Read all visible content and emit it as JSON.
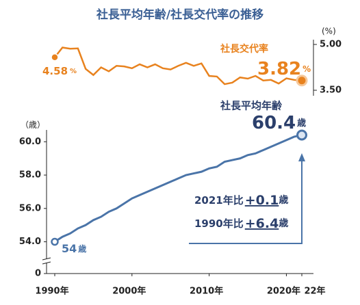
{
  "title": "社長平均年齢/社長交代率の推移",
  "chart_data": [
    {
      "type": "line",
      "name": "社長交代率",
      "color": "#e8821e",
      "unit": "%",
      "axis_unit": "(%)",
      "x": [
        1990,
        1991,
        1992,
        1993,
        1994,
        1995,
        1996,
        1997,
        1998,
        1999,
        2000,
        2001,
        2002,
        2003,
        2004,
        2005,
        2006,
        2007,
        2008,
        2009,
        2010,
        2011,
        2012,
        2013,
        2014,
        2015,
        2016,
        2017,
        2018,
        2019,
        2020,
        2021,
        2022
      ],
      "values": [
        4.58,
        4.9,
        4.86,
        4.87,
        4.2,
        4.0,
        4.25,
        4.12,
        4.3,
        4.28,
        4.22,
        4.35,
        4.25,
        4.35,
        4.22,
        4.18,
        4.3,
        4.4,
        4.3,
        4.38,
        3.97,
        3.95,
        3.7,
        3.75,
        3.92,
        3.88,
        3.97,
        3.82,
        3.84,
        3.72,
        3.89,
        3.84,
        3.82
      ],
      "xlim": [
        1990,
        2022
      ],
      "ylim": [
        3.5,
        5.0
      ],
      "yticks": [
        {
          "value": 5.0,
          "label": "5.00"
        },
        {
          "value": 3.5,
          "label": "3.50"
        }
      ]
    },
    {
      "type": "line",
      "name": "社長平均年齢",
      "color": "#4a74a8",
      "unit": "歳",
      "axis_unit": "（歳）",
      "x": [
        1990,
        1991,
        1992,
        1993,
        1994,
        1995,
        1996,
        1997,
        1998,
        1999,
        2000,
        2001,
        2002,
        2003,
        2004,
        2005,
        2006,
        2007,
        2008,
        2009,
        2010,
        2011,
        2012,
        2013,
        2014,
        2015,
        2016,
        2017,
        2018,
        2019,
        2020,
        2021,
        2022
      ],
      "values": [
        54.0,
        54.3,
        54.5,
        54.8,
        55.0,
        55.3,
        55.5,
        55.8,
        56.0,
        56.3,
        56.6,
        56.8,
        57.0,
        57.2,
        57.4,
        57.6,
        57.8,
        58.0,
        58.1,
        58.2,
        58.4,
        58.5,
        58.8,
        58.9,
        59.0,
        59.2,
        59.3,
        59.5,
        59.7,
        59.9,
        60.1,
        60.3,
        60.4
      ],
      "xlim": [
        1990,
        2022
      ],
      "ylim": [
        52.3,
        61.2
      ],
      "xticks": [
        {
          "value": 1990,
          "label": "1990年"
        },
        {
          "value": 2000,
          "label": "2000年"
        },
        {
          "value": 2010,
          "label": "2010年"
        },
        {
          "value": 2020,
          "label": "2020年"
        },
        {
          "value": 2022,
          "label": "22年"
        }
      ],
      "yticks": [
        0,
        {
          "value": 54,
          "label": "54.0"
        },
        {
          "value": 56,
          "label": "56.0"
        },
        {
          "value": 58,
          "label": "58.0"
        },
        {
          "value": 60,
          "label": "60.0"
        }
      ],
      "comparisons": [
        {
          "label": "2021年比",
          "value": 0.1,
          "value_label": "+0.1"
        },
        {
          "label": "1990年比",
          "value": 6.4,
          "value_label": "+6.4"
        }
      ]
    }
  ]
}
